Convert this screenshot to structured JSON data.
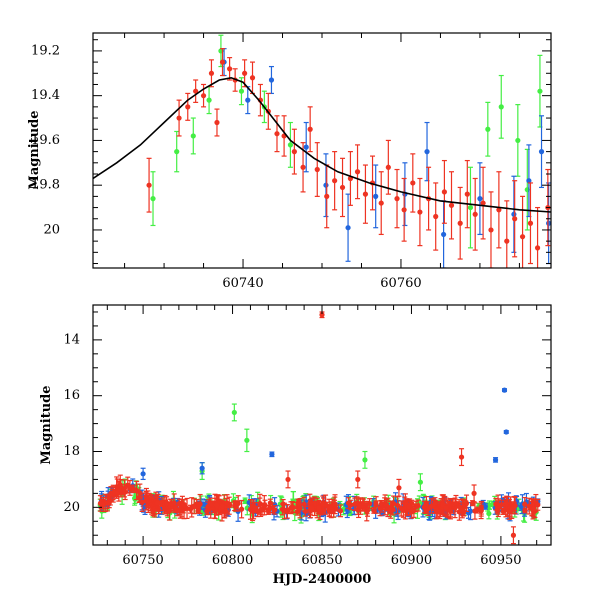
{
  "chart_data": [
    {
      "type": "scatter",
      "title": "",
      "xlabel": "",
      "ylabel": "Magnitude",
      "xlim": [
        60721,
        60779
      ],
      "ylim": [
        20.17,
        19.12
      ],
      "y_inverted": true,
      "x_ticks": [
        60740,
        60760
      ],
      "x_tick_labels": [
        "60740",
        "60760"
      ],
      "y_ticks": [
        19.2,
        19.4,
        19.6,
        19.8,
        20.0
      ],
      "y_tick_labels": [
        "19.2",
        "19.4",
        "19.6",
        "19.8",
        "20"
      ],
      "model_curve": {
        "name": "fit",
        "color": "#000000",
        "x": [
          60721,
          60724,
          60727,
          60730,
          60733,
          60735,
          60737,
          60738.5,
          60740,
          60742,
          60744,
          60746,
          60749,
          60752,
          60756,
          60760,
          60765,
          60770,
          60775,
          60779
        ],
        "y": [
          19.77,
          19.7,
          19.62,
          19.52,
          19.42,
          19.37,
          19.33,
          19.32,
          19.34,
          19.42,
          19.51,
          19.6,
          19.68,
          19.74,
          19.79,
          19.83,
          19.87,
          19.89,
          19.91,
          19.92
        ]
      },
      "series": [
        {
          "name": "red",
          "color": "#ee3322",
          "points": [
            {
              "x": 60728.1,
              "y": 19.8,
              "err": 0.12
            },
            {
              "x": 60731.9,
              "y": 19.5,
              "err": 0.08
            },
            {
              "x": 60733.0,
              "y": 19.45,
              "err": 0.06
            },
            {
              "x": 60734.0,
              "y": 19.38,
              "err": 0.05
            },
            {
              "x": 60735.0,
              "y": 19.4,
              "err": 0.05
            },
            {
              "x": 60736.0,
              "y": 19.3,
              "err": 0.06
            },
            {
              "x": 60736.7,
              "y": 19.52,
              "err": 0.06
            },
            {
              "x": 60737.4,
              "y": 19.25,
              "err": 0.06
            },
            {
              "x": 60738.3,
              "y": 19.28,
              "err": 0.05
            },
            {
              "x": 60739.0,
              "y": 19.33,
              "err": 0.05
            },
            {
              "x": 60740.2,
              "y": 19.3,
              "err": 0.06
            },
            {
              "x": 60741.2,
              "y": 19.32,
              "err": 0.07
            },
            {
              "x": 60742.2,
              "y": 19.42,
              "err": 0.07
            },
            {
              "x": 60743.2,
              "y": 19.47,
              "err": 0.08
            },
            {
              "x": 60744.3,
              "y": 19.57,
              "err": 0.08
            },
            {
              "x": 60745.2,
              "y": 19.58,
              "err": 0.09
            },
            {
              "x": 60746.5,
              "y": 19.65,
              "err": 0.1
            },
            {
              "x": 60747.6,
              "y": 19.72,
              "err": 0.11
            },
            {
              "x": 60748.5,
              "y": 19.55,
              "err": 0.1
            },
            {
              "x": 60749.4,
              "y": 19.73,
              "err": 0.12
            },
            {
              "x": 60750.6,
              "y": 19.85,
              "err": 0.14
            },
            {
              "x": 60751.6,
              "y": 19.78,
              "err": 0.13
            },
            {
              "x": 60752.6,
              "y": 19.81,
              "err": 0.13
            },
            {
              "x": 60753.6,
              "y": 19.77,
              "err": 0.12
            },
            {
              "x": 60754.5,
              "y": 19.74,
              "err": 0.12
            },
            {
              "x": 60755.5,
              "y": 19.84,
              "err": 0.13
            },
            {
              "x": 60756.4,
              "y": 19.79,
              "err": 0.12
            },
            {
              "x": 60757.5,
              "y": 19.88,
              "err": 0.14
            },
            {
              "x": 60758.4,
              "y": 19.72,
              "err": 0.12
            },
            {
              "x": 60759.5,
              "y": 19.86,
              "err": 0.13
            },
            {
              "x": 60760.4,
              "y": 19.91,
              "err": 0.14
            },
            {
              "x": 60761.5,
              "y": 19.79,
              "err": 0.13
            },
            {
              "x": 60762.4,
              "y": 19.92,
              "err": 0.15
            },
            {
              "x": 60763.5,
              "y": 19.86,
              "err": 0.14
            },
            {
              "x": 60764.4,
              "y": 19.94,
              "err": 0.15
            },
            {
              "x": 60765.5,
              "y": 19.83,
              "err": 0.14
            },
            {
              "x": 60766.4,
              "y": 19.89,
              "err": 0.15
            },
            {
              "x": 60767.5,
              "y": 19.97,
              "err": 0.16
            },
            {
              "x": 60768.4,
              "y": 19.84,
              "err": 0.15
            },
            {
              "x": 60769.4,
              "y": 19.93,
              "err": 0.16
            },
            {
              "x": 60770.4,
              "y": 19.88,
              "err": 0.16
            },
            {
              "x": 60771.4,
              "y": 20.0,
              "err": 0.17
            },
            {
              "x": 60772.4,
              "y": 19.91,
              "err": 0.17
            },
            {
              "x": 60773.4,
              "y": 20.05,
              "err": 0.18
            },
            {
              "x": 60774.4,
              "y": 19.95,
              "err": 0.17
            },
            {
              "x": 60775.4,
              "y": 20.03,
              "err": 0.18
            },
            {
              "x": 60776.4,
              "y": 19.97,
              "err": 0.18
            },
            {
              "x": 60777.3,
              "y": 20.08,
              "err": 0.18
            },
            {
              "x": 60778.6,
              "y": 19.9,
              "err": 0.17
            }
          ]
        },
        {
          "name": "green",
          "color": "#44ee44",
          "points": [
            {
              "x": 60728.6,
              "y": 19.86,
              "err": 0.12
            },
            {
              "x": 60731.6,
              "y": 19.65,
              "err": 0.09
            },
            {
              "x": 60733.7,
              "y": 19.58,
              "err": 0.08
            },
            {
              "x": 60735.7,
              "y": 19.42,
              "err": 0.06
            },
            {
              "x": 60737.2,
              "y": 19.2,
              "err": 0.07
            },
            {
              "x": 60739.8,
              "y": 19.38,
              "err": 0.06
            },
            {
              "x": 60742.7,
              "y": 19.45,
              "err": 0.07
            },
            {
              "x": 60746.0,
              "y": 19.62,
              "err": 0.1
            },
            {
              "x": 60768.8,
              "y": 19.9,
              "err": 0.18
            },
            {
              "x": 60771.0,
              "y": 19.55,
              "err": 0.12
            },
            {
              "x": 60772.7,
              "y": 19.45,
              "err": 0.14
            },
            {
              "x": 60774.8,
              "y": 19.6,
              "err": 0.16
            },
            {
              "x": 60776.0,
              "y": 19.82,
              "err": 0.18
            },
            {
              "x": 60777.6,
              "y": 19.38,
              "err": 0.16
            }
          ]
        },
        {
          "name": "blue",
          "color": "#2266dd",
          "points": [
            {
              "x": 60737.6,
              "y": 19.25,
              "err": 0.06
            },
            {
              "x": 60740.6,
              "y": 19.42,
              "err": 0.06
            },
            {
              "x": 60743.6,
              "y": 19.33,
              "err": 0.06
            },
            {
              "x": 60748.0,
              "y": 19.63,
              "err": 0.11
            },
            {
              "x": 60750.5,
              "y": 19.8,
              "err": 0.14
            },
            {
              "x": 60753.3,
              "y": 19.99,
              "err": 0.15
            },
            {
              "x": 60756.8,
              "y": 19.85,
              "err": 0.14
            },
            {
              "x": 60760.5,
              "y": 19.84,
              "err": 0.14
            },
            {
              "x": 60763.3,
              "y": 19.65,
              "err": 0.13
            },
            {
              "x": 60765.4,
              "y": 20.02,
              "err": 0.15
            },
            {
              "x": 60770.0,
              "y": 19.86,
              "err": 0.16
            },
            {
              "x": 60774.3,
              "y": 19.93,
              "err": 0.17
            },
            {
              "x": 60776.2,
              "y": 19.78,
              "err": 0.16
            },
            {
              "x": 60777.8,
              "y": 19.65,
              "err": 0.16
            },
            {
              "x": 60778.7,
              "y": 19.97,
              "err": 0.18
            }
          ]
        }
      ]
    },
    {
      "type": "scatter",
      "title": "",
      "xlabel": "HJD-2400000",
      "ylabel": "Magnitude",
      "xlim": [
        60722,
        60978
      ],
      "ylim": [
        21.35,
        12.75
      ],
      "y_inverted": true,
      "x_ticks": [
        60750,
        60800,
        60850,
        60900,
        60950
      ],
      "x_tick_labels": [
        "60750",
        "60800",
        "60850",
        "60900",
        "60950"
      ],
      "y_ticks": [
        14,
        16,
        18,
        20
      ],
      "y_tick_labels": [
        "14",
        "16",
        "18",
        "20"
      ],
      "baseline_magnitude": 20.0,
      "outliers": [
        {
          "series": "red",
          "x": 60850,
          "y": 13.1,
          "err": 0.1
        },
        {
          "series": "green",
          "x": 60801,
          "y": 16.6,
          "err": 0.3
        },
        {
          "series": "green",
          "x": 60808,
          "y": 17.6,
          "err": 0.4
        },
        {
          "series": "green",
          "x": 60783,
          "y": 18.7,
          "err": 0.3
        },
        {
          "series": "green",
          "x": 60874,
          "y": 18.3,
          "err": 0.3
        },
        {
          "series": "green",
          "x": 60905,
          "y": 19.1,
          "err": 0.3
        },
        {
          "series": "blue",
          "x": 60952,
          "y": 15.8,
          "err": 0.05
        },
        {
          "series": "blue",
          "x": 60953,
          "y": 17.3,
          "err": 0.05
        },
        {
          "series": "blue",
          "x": 60947,
          "y": 18.3,
          "err": 0.08
        },
        {
          "series": "blue",
          "x": 60822,
          "y": 18.1,
          "err": 0.08
        },
        {
          "series": "blue",
          "x": 60750,
          "y": 18.8,
          "err": 0.2
        },
        {
          "series": "blue",
          "x": 60783,
          "y": 18.6,
          "err": 0.2
        },
        {
          "series": "red",
          "x": 60928,
          "y": 18.2,
          "err": 0.3
        },
        {
          "series": "red",
          "x": 60831,
          "y": 19.0,
          "err": 0.3
        },
        {
          "series": "red",
          "x": 60870,
          "y": 19.0,
          "err": 0.3
        },
        {
          "series": "red",
          "x": 60893,
          "y": 19.3,
          "err": 0.3
        },
        {
          "series": "red",
          "x": 60935,
          "y": 19.5,
          "err": 0.3
        },
        {
          "series": "red",
          "x": 60957,
          "y": 21.0,
          "err": 0.3
        }
      ],
      "series": [
        {
          "name": "red",
          "color": "#ee3322"
        },
        {
          "name": "green",
          "color": "#44ee44"
        },
        {
          "name": "blue",
          "color": "#2266dd"
        }
      ]
    }
  ]
}
